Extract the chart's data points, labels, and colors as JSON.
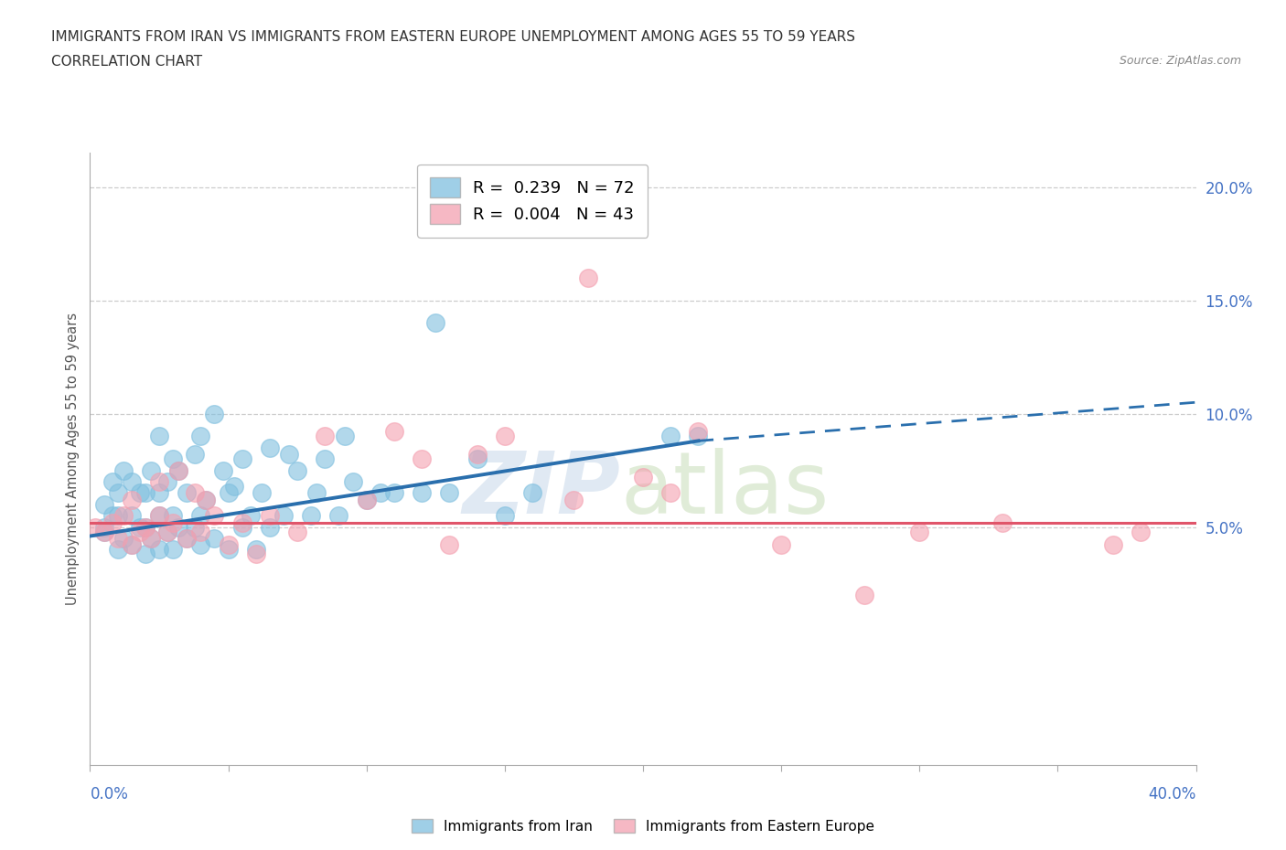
{
  "title_line1": "IMMIGRANTS FROM IRAN VS IMMIGRANTS FROM EASTERN EUROPE UNEMPLOYMENT AMONG AGES 55 TO 59 YEARS",
  "title_line2": "CORRELATION CHART",
  "source_text": "Source: ZipAtlas.com",
  "ylabel": "Unemployment Among Ages 55 to 59 years",
  "ytick_labels": [
    "5.0%",
    "10.0%",
    "15.0%",
    "20.0%"
  ],
  "ytick_values": [
    0.05,
    0.1,
    0.15,
    0.2
  ],
  "xmin": 0.0,
  "xmax": 0.4,
  "ymin": -0.055,
  "ymax": 0.215,
  "iran_color": "#7fbfdf",
  "eastern_color": "#f4a0b0",
  "iran_line_color": "#2a6fad",
  "eastern_line_color": "#e0556a",
  "iran_R": 0.239,
  "iran_N": 72,
  "eastern_R": 0.004,
  "eastern_N": 43,
  "iran_scatter_x": [
    0.005,
    0.005,
    0.005,
    0.008,
    0.008,
    0.01,
    0.01,
    0.01,
    0.012,
    0.012,
    0.015,
    0.015,
    0.015,
    0.018,
    0.018,
    0.02,
    0.02,
    0.02,
    0.022,
    0.022,
    0.025,
    0.025,
    0.025,
    0.025,
    0.028,
    0.028,
    0.03,
    0.03,
    0.03,
    0.032,
    0.032,
    0.035,
    0.035,
    0.038,
    0.038,
    0.04,
    0.04,
    0.04,
    0.042,
    0.045,
    0.045,
    0.048,
    0.05,
    0.05,
    0.052,
    0.055,
    0.055,
    0.058,
    0.06,
    0.062,
    0.065,
    0.065,
    0.07,
    0.072,
    0.075,
    0.08,
    0.082,
    0.085,
    0.09,
    0.092,
    0.095,
    0.1,
    0.105,
    0.11,
    0.12,
    0.125,
    0.13,
    0.14,
    0.15,
    0.16,
    0.21,
    0.22
  ],
  "iran_scatter_y": [
    0.05,
    0.06,
    0.048,
    0.055,
    0.07,
    0.04,
    0.055,
    0.065,
    0.045,
    0.075,
    0.042,
    0.055,
    0.07,
    0.05,
    0.065,
    0.038,
    0.05,
    0.065,
    0.045,
    0.075,
    0.04,
    0.055,
    0.065,
    0.09,
    0.048,
    0.07,
    0.04,
    0.055,
    0.08,
    0.05,
    0.075,
    0.045,
    0.065,
    0.05,
    0.082,
    0.042,
    0.055,
    0.09,
    0.062,
    0.045,
    0.1,
    0.075,
    0.04,
    0.065,
    0.068,
    0.05,
    0.08,
    0.055,
    0.04,
    0.065,
    0.05,
    0.085,
    0.055,
    0.082,
    0.075,
    0.055,
    0.065,
    0.08,
    0.055,
    0.09,
    0.07,
    0.062,
    0.065,
    0.065,
    0.065,
    0.14,
    0.065,
    0.08,
    0.055,
    0.065,
    0.09,
    0.09
  ],
  "eastern_scatter_x": [
    0.002,
    0.005,
    0.008,
    0.01,
    0.012,
    0.015,
    0.015,
    0.018,
    0.02,
    0.022,
    0.025,
    0.025,
    0.028,
    0.03,
    0.032,
    0.035,
    0.038,
    0.04,
    0.042,
    0.045,
    0.05,
    0.055,
    0.06,
    0.065,
    0.075,
    0.085,
    0.1,
    0.11,
    0.12,
    0.13,
    0.14,
    0.15,
    0.175,
    0.18,
    0.2,
    0.21,
    0.22,
    0.25,
    0.28,
    0.3,
    0.33,
    0.37,
    0.38
  ],
  "eastern_scatter_y": [
    0.05,
    0.048,
    0.052,
    0.045,
    0.055,
    0.042,
    0.062,
    0.048,
    0.05,
    0.045,
    0.055,
    0.07,
    0.048,
    0.052,
    0.075,
    0.045,
    0.065,
    0.048,
    0.062,
    0.055,
    0.042,
    0.052,
    0.038,
    0.055,
    0.048,
    0.09,
    0.062,
    0.092,
    0.08,
    0.042,
    0.082,
    0.09,
    0.062,
    0.16,
    0.072,
    0.065,
    0.092,
    0.042,
    0.02,
    0.048,
    0.052,
    0.042,
    0.048
  ],
  "iran_line_x0": 0.0,
  "iran_line_x1": 0.22,
  "iran_line_x2": 0.4,
  "iran_line_y0": 0.046,
  "iran_line_y1": 0.088,
  "iran_line_y2": 0.105,
  "eastern_line_y": 0.052
}
